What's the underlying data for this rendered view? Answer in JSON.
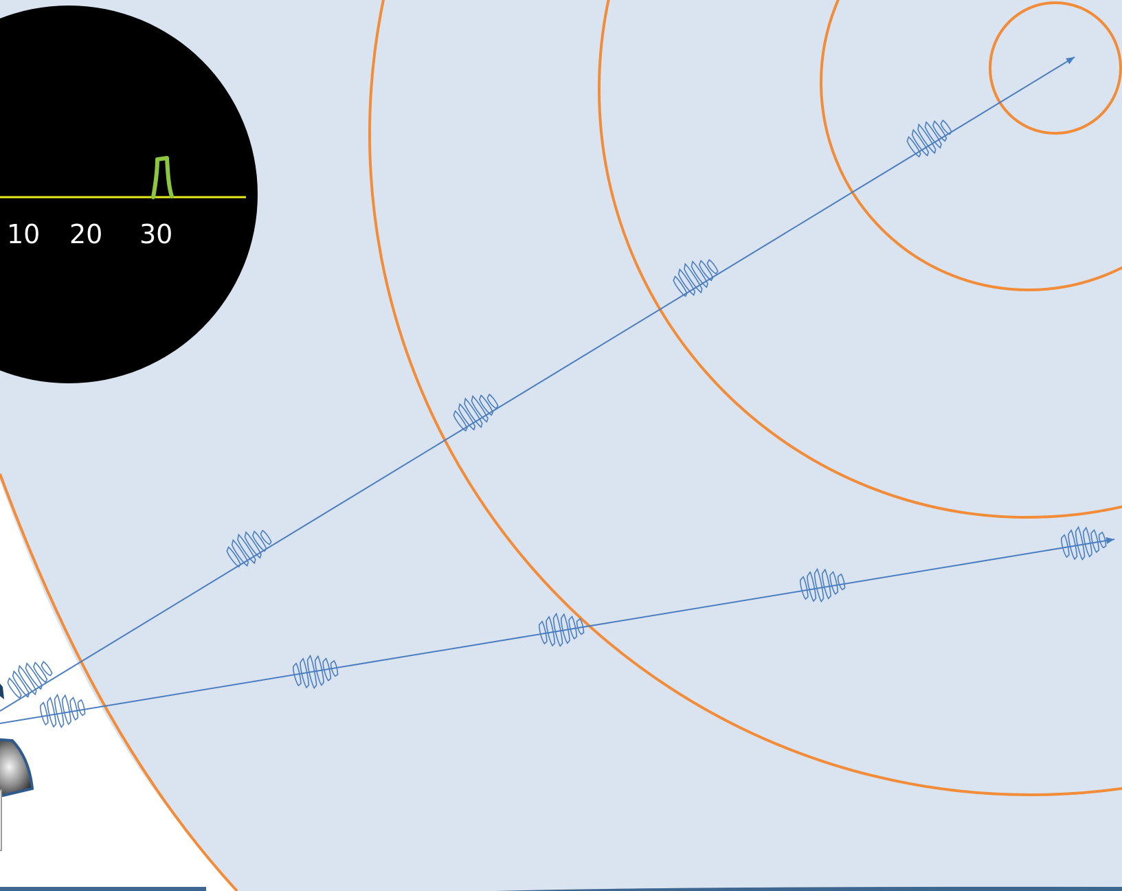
{
  "scope": {
    "tick_labels": [
      "10",
      "20",
      "30"
    ],
    "baseline_color": "#e8ec1f",
    "pulse_color": "#8dc63f",
    "background": "#000000"
  },
  "colors": {
    "field": "#dae3f0",
    "wavefront": "#f28c38",
    "beam": "#4a7ec0",
    "transducer_dark": "#2a2a2a",
    "transducer_edge": "#2e5a8c",
    "bottom_band": "#3d6690"
  }
}
